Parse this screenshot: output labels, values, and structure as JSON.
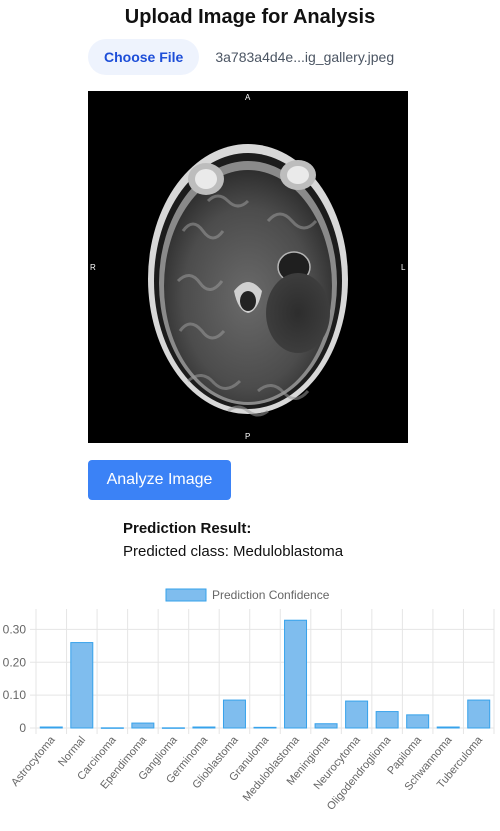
{
  "page": {
    "title": "Upload Image for Analysis"
  },
  "upload": {
    "choose_file_label": "Choose File",
    "file_name": "3a783a4d4e...ig_gallery.jpeg"
  },
  "scan": {
    "orientation": {
      "top": "A",
      "bottom": "P",
      "left": "R",
      "right": "L"
    }
  },
  "actions": {
    "analyze_label": "Analyze Image"
  },
  "result": {
    "heading": "Prediction Result:",
    "text": "Predicted class: Meduloblastoma"
  },
  "colors": {
    "accent": "#3b82f6",
    "bar_fill": "#7fbdee",
    "bar_border": "#36a2eb"
  },
  "chart_data": {
    "type": "bar",
    "legend": "Prediction Confidence",
    "legend_position": "top",
    "grid": true,
    "categories": [
      "Astrocytoma",
      "Normal",
      "Carcinoma",
      "Ependimoma",
      "Ganglioma",
      "Germinoma",
      "Glioblastoma",
      "Granuloma",
      "Meduloblastoma",
      "Meningioma",
      "Neurocytoma",
      "Oligodendroglioma",
      "Papiloma",
      "Schwannoma",
      "Tuberculoma"
    ],
    "series": [
      {
        "name": "Prediction Confidence",
        "values": [
          0.003,
          0.26,
          0.0005,
          0.015,
          0.0005,
          0.003,
          0.085,
          0.002,
          0.328,
          0.013,
          0.082,
          0.05,
          0.04,
          0.003,
          0.085
        ]
      }
    ],
    "yticks": [
      "0",
      "0.10",
      "0.20",
      "0.30"
    ],
    "ylim": [
      0,
      0.35
    ]
  }
}
